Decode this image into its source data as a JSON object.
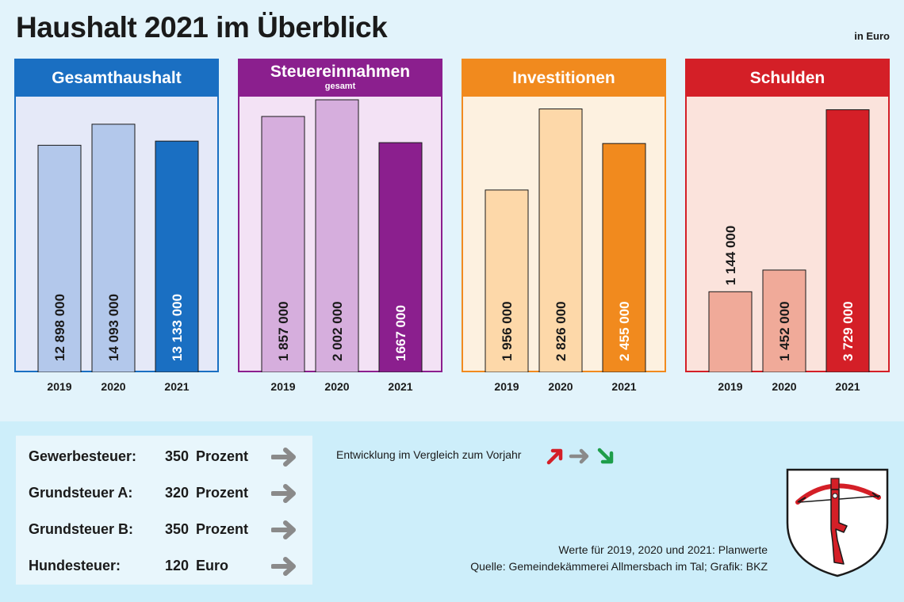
{
  "title": "Haushalt 2021 im Überblick",
  "unit": "in Euro",
  "chart_data": [
    {
      "type": "bar",
      "title": "Gesamthaushalt",
      "subtitle": "",
      "categories": [
        "2019",
        "2020",
        "2021"
      ],
      "values": [
        12898000,
        14093000,
        13133000
      ],
      "value_labels": [
        "12 898 000",
        "14 093 000",
        "13 133 000"
      ],
      "ylim": [
        0,
        18000000
      ],
      "colors": [
        "#b3c8eb",
        "#b3c8eb",
        "#1a6fc2"
      ],
      "head_color": "#1a6fc2",
      "bg_color": "#e5e9f8",
      "border_color": "#1a6fc2"
    },
    {
      "type": "bar",
      "title": "Steuereinnahmen",
      "subtitle": "gesamt",
      "categories": [
        "2019",
        "2020",
        "2021"
      ],
      "values": [
        1857000,
        2002000,
        1667000
      ],
      "value_labels": [
        "1 857 000",
        "2 002 000",
        "1667 000"
      ],
      "ylim": [
        0,
        2300000
      ],
      "colors": [
        "#d6aedd",
        "#d6aedd",
        "#8b1f8e"
      ],
      "head_color": "#8b1f8e",
      "bg_color": "#f3e2f5",
      "border_color": "#8b1f8e"
    },
    {
      "type": "bar",
      "title": "Investitionen",
      "subtitle": "",
      "categories": [
        "2019",
        "2020",
        "2021"
      ],
      "values": [
        1956000,
        2826000,
        2455000
      ],
      "value_labels": [
        "1 956 000",
        "2 826 000",
        "2 455 000"
      ],
      "ylim": [
        0,
        3400000
      ],
      "colors": [
        "#fdd8a9",
        "#fdd8a9",
        "#f18a1e"
      ],
      "head_color": "#f18a1e",
      "bg_color": "#fdf1e0",
      "border_color": "#f18a1e"
    },
    {
      "type": "bar",
      "title": "Schulden",
      "subtitle": "",
      "categories": [
        "2019",
        "2020",
        "2021"
      ],
      "values": [
        1144000,
        1452000,
        3729000
      ],
      "value_labels": [
        "1 144 000",
        "1 452 000",
        "3 729 000"
      ],
      "ylim": [
        0,
        4500000
      ],
      "colors": [
        "#f0aa99",
        "#f0aa99",
        "#d41f27"
      ],
      "head_color": "#d41f27",
      "bg_color": "#fbe3dc",
      "border_color": "#d41f27"
    }
  ],
  "taxes": [
    {
      "name": "Gewerbesteuer:",
      "value": "350",
      "unit": "Prozent",
      "trend": "neutral"
    },
    {
      "name": "Grundsteuer A:",
      "value": "320",
      "unit": "Prozent",
      "trend": "neutral"
    },
    {
      "name": "Grundsteuer B:",
      "value": "350",
      "unit": "Prozent",
      "trend": "neutral"
    },
    {
      "name": "Hundesteuer:",
      "value": "120",
      "unit": "Euro",
      "trend": "neutral"
    }
  ],
  "legend_text": "Entwicklung im Vergleich zum Vorjahr",
  "colors": {
    "up": "#d41f27",
    "neutral": "#8a8a8a",
    "down": "#1e9e4a"
  },
  "footnote_line1": "Werte für 2019, 2020 und 2021: Planwerte",
  "footnote_line2": "Quelle: Gemeindekämmerei Allmersbach im Tal; Grafik: BKZ"
}
